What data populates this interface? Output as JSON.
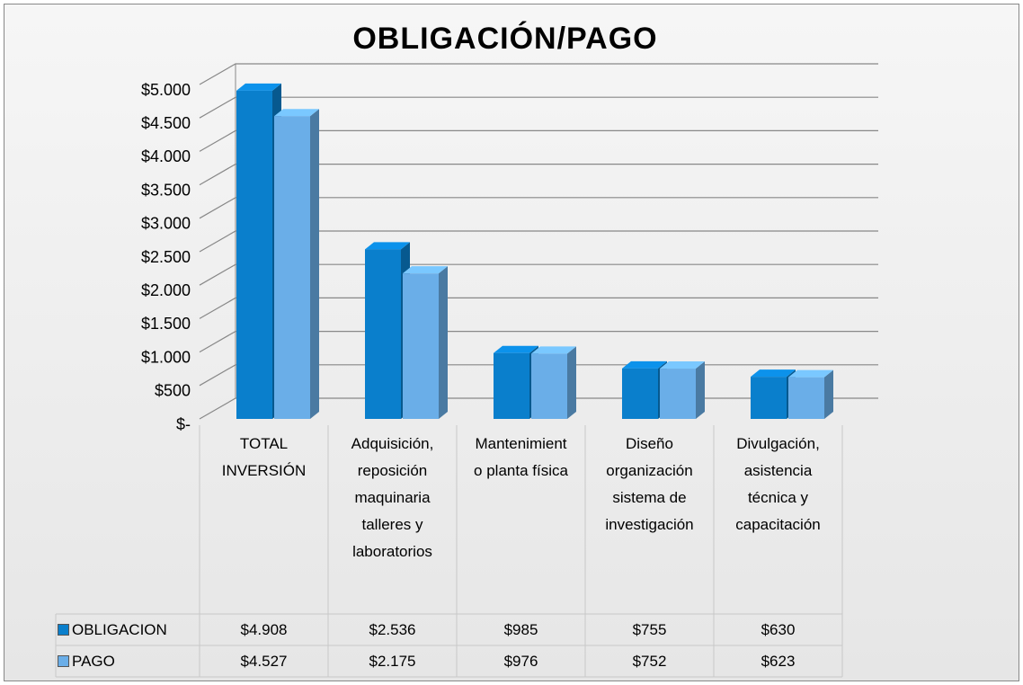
{
  "chart_data": {
    "type": "bar3d",
    "title": "OBLIGACIÓN/PAGO",
    "categories": [
      "TOTAL INVERSIÓN",
      "Adquisición, reposición maquinaria talleres y laboratorios",
      "Mantenimiento planta física",
      "Diseño organización sistema de investigación",
      "Divulgación, asistencia técnica y capacitación"
    ],
    "series": [
      {
        "name": "OBLIGACION",
        "color": "#0a7fcc",
        "values": [
          4908,
          2536,
          985,
          755,
          630
        ],
        "value_labels": [
          "$4.908",
          "$2.536",
          "$985",
          "$755",
          "$630"
        ]
      },
      {
        "name": "PAGO",
        "color": "#6aaee8",
        "values": [
          4527,
          2175,
          976,
          752,
          623
        ],
        "value_labels": [
          "$4.527",
          "$2.175",
          "$976",
          "$752",
          "$623"
        ]
      }
    ],
    "ylim": [
      0,
      5000
    ],
    "yticks": [
      {
        "value": 0,
        "label": "$-"
      },
      {
        "value": 500,
        "label": "$500"
      },
      {
        "value": 1000,
        "label": "$1.000"
      },
      {
        "value": 1500,
        "label": "$1.500"
      },
      {
        "value": 2000,
        "label": "$2.000"
      },
      {
        "value": 2500,
        "label": "$2.500"
      },
      {
        "value": 3000,
        "label": "$3.000"
      },
      {
        "value": 3500,
        "label": "$3.500"
      },
      {
        "value": 4000,
        "label": "$4.000"
      },
      {
        "value": 4500,
        "label": "$4.500"
      },
      {
        "value": 5000,
        "label": "$5.000"
      }
    ],
    "grid": true,
    "data_table": true
  }
}
